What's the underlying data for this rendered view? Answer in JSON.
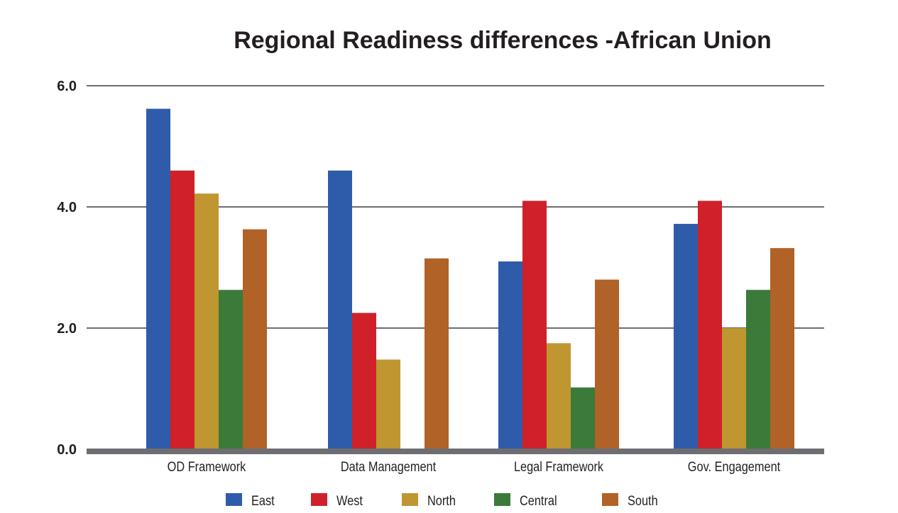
{
  "chart_data": {
    "type": "bar",
    "title": "Regional Readiness differences -African Union",
    "xlabel": "",
    "ylabel": "",
    "categories": [
      "OD Framework",
      "Data Management",
      "Legal Framework",
      "Gov. Engagement"
    ],
    "series": [
      {
        "name": "East",
        "color": "#2f5caa",
        "values": [
          5.62,
          4.6,
          3.1,
          3.72
        ]
      },
      {
        "name": "West",
        "color": "#d0202a",
        "values": [
          4.6,
          2.25,
          4.1,
          4.1
        ]
      },
      {
        "name": "North",
        "color": "#bf962f",
        "values": [
          4.22,
          1.48,
          1.75,
          2.0
        ]
      },
      {
        "name": "Central",
        "color": "#3b7a39",
        "values": [
          2.63,
          0,
          1.02,
          2.63
        ]
      },
      {
        "name": "South",
        "color": "#b06227",
        "values": [
          3.63,
          3.15,
          2.8,
          3.32
        ]
      }
    ],
    "ylim": [
      0,
      6
    ],
    "yticks": [
      0,
      2,
      4,
      6
    ],
    "ytick_labels": [
      "0.0",
      "2.0",
      "4.0",
      "6.0"
    ],
    "grid": true,
    "legend_position": "bottom",
    "colors": {
      "gridline": "#6d6e71",
      "baseline": "#6d6e71",
      "text": "#231f20"
    }
  }
}
